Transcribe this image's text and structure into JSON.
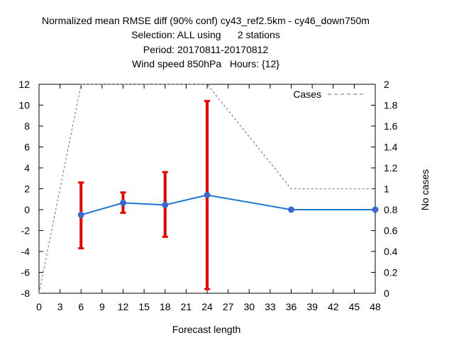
{
  "chart_data": {
    "type": "line",
    "title_lines": [
      "Normalized mean RMSE diff (90% conf) cy43_ref2.5km - cy46_down750m",
      "Selection: ALL using      2 stations",
      "Period: 20170811-20170812",
      "Wind speed 850hPa   Hours: {12}"
    ],
    "xlabel": "Forecast length",
    "ylabel": "",
    "y2label": "No cases",
    "xlim": [
      0,
      48
    ],
    "ylim": [
      -8,
      12
    ],
    "y2lim": [
      0,
      2
    ],
    "xticks": [
      0,
      3,
      6,
      9,
      12,
      15,
      18,
      21,
      24,
      27,
      30,
      33,
      36,
      39,
      42,
      45,
      48
    ],
    "yticks": [
      -8,
      -6,
      -4,
      -2,
      0,
      2,
      4,
      6,
      8,
      10,
      12
    ],
    "y2ticks": [
      0,
      0.2,
      0.4,
      0.6,
      0.8,
      1,
      1.2,
      1.4,
      1.6,
      1.8,
      2
    ],
    "grid": false,
    "legend_position": "top-right",
    "series": [
      {
        "name": "",
        "axis": "y",
        "color": "#1f77d4",
        "marker_color": "#4a5fd0",
        "x": [
          6,
          12,
          18,
          24,
          36,
          48
        ],
        "values": [
          -0.5,
          0.65,
          0.45,
          1.4,
          0.0,
          0.0
        ],
        "error_low": [
          -3.7,
          -0.3,
          -2.6,
          -7.6,
          null,
          null
        ],
        "error_high": [
          2.6,
          1.65,
          3.6,
          10.4,
          null,
          null
        ],
        "error_color": "#ee0000"
      },
      {
        "name": "Cases",
        "axis": "y2",
        "color": "#8a8a8a",
        "dashed": true,
        "x": [
          0,
          6,
          12,
          18,
          24,
          36,
          48
        ],
        "values": [
          0,
          2,
          2,
          2,
          2,
          1,
          1
        ]
      }
    ]
  }
}
